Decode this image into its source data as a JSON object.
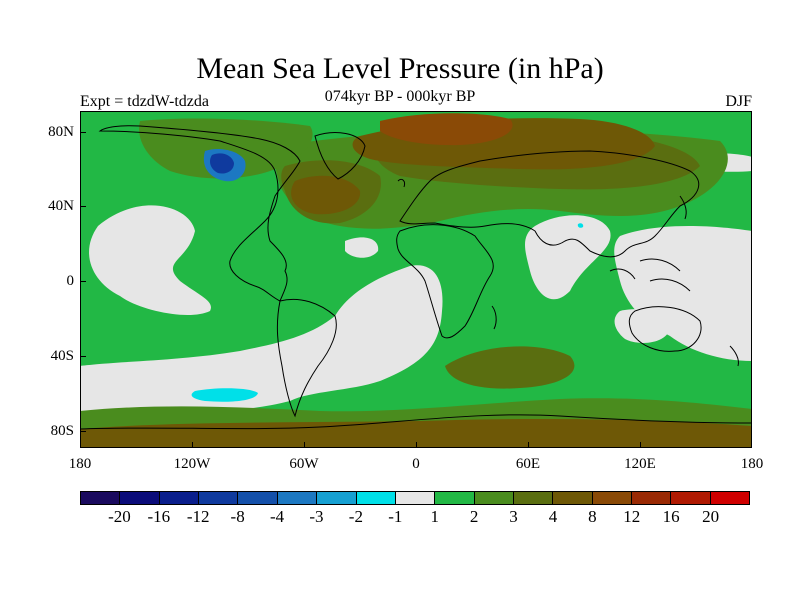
{
  "figure": {
    "title": "Mean Sea Level Pressure (in hPa)",
    "subtitle": "074kyr BP - 000kyr BP",
    "experiment": "Expt = tdzdW-tdzda",
    "season": "DJF"
  },
  "axes": {
    "lat_labels": [
      "80N",
      "40N",
      "0",
      "40S",
      "80S"
    ],
    "lon_labels": [
      "180",
      "120W",
      "60W",
      "0",
      "60E",
      "120E",
      "180"
    ]
  },
  "colorbar": {
    "colors": [
      "#1a0a5e",
      "#0b0c7a",
      "#0a1e8c",
      "#0f3a9e",
      "#1450aa",
      "#1c78c2",
      "#16a0d2",
      "#00e0e8",
      "#e6e6e6",
      "#22b845",
      "#4a8c1e",
      "#5a6e10",
      "#6e5806",
      "#8a4a06",
      "#9a2a04",
      "#b01a02",
      "#d00000"
    ],
    "labels": [
      "-20",
      "-16",
      "-12",
      "-8",
      "-4",
      "-3",
      "-2",
      "-1",
      "1",
      "2",
      "3",
      "4",
      "8",
      "12",
      "16",
      "20"
    ]
  },
  "palette": {
    "ocean_default": "#22b845",
    "neutral": "#e6e6e6",
    "dark_green": "#4a8c1e",
    "olive": "#5a6e10",
    "brown": "#6e5806",
    "rust": "#8a4a06",
    "blue": "#1c78c2",
    "cyan": "#00e0e8"
  }
}
